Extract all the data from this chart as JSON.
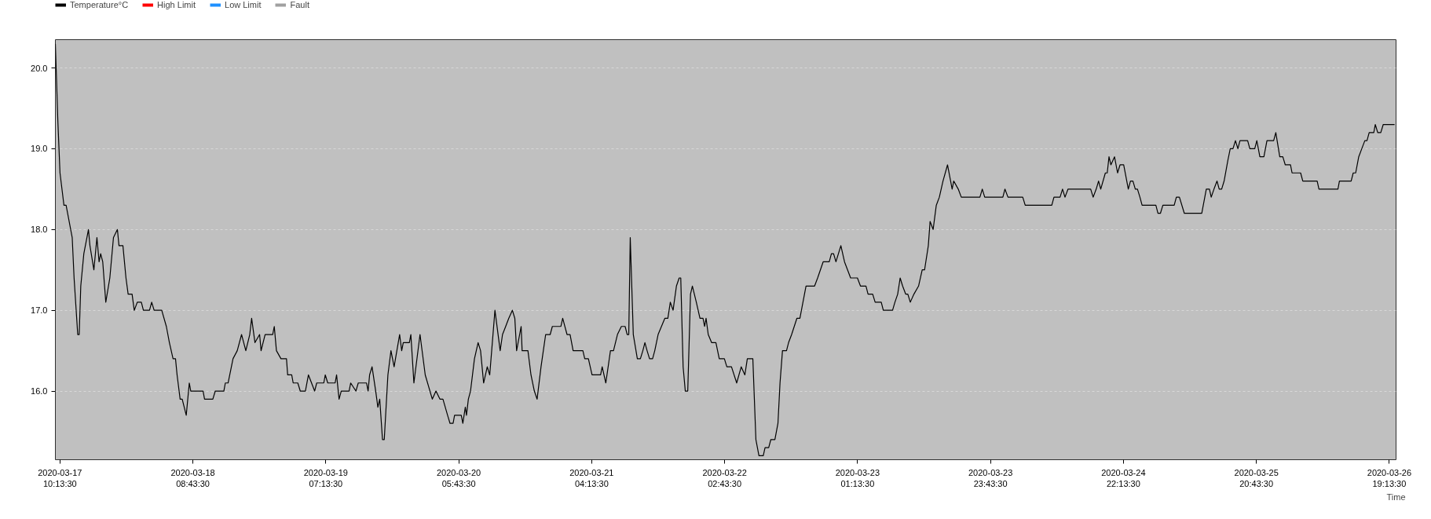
{
  "chart_data": {
    "type": "line",
    "xlabel": "Time",
    "legend": "top left",
    "grid": "y",
    "line_style": "solid",
    "xlim": [
      "2020-03-17T09:27",
      "2020-03-26T20:22"
    ],
    "xticks": [
      {
        "value": "2020-03-17T10:13:30",
        "label": "2020-03-17\n10:13:30"
      },
      {
        "value": "2020-03-18T08:43:30",
        "label": "2020-03-18\n08:43:30"
      },
      {
        "value": "2020-03-19T07:13:30",
        "label": "2020-03-19\n07:13:30"
      },
      {
        "value": "2020-03-20T05:43:30",
        "label": "2020-03-20\n05:43:30"
      },
      {
        "value": "2020-03-21T04:13:30",
        "label": "2020-03-21\n04:13:30"
      },
      {
        "value": "2020-03-22T02:43:30",
        "label": "2020-03-22\n02:43:30"
      },
      {
        "value": "2020-03-23T01:13:30",
        "label": "2020-03-23\n01:13:30"
      },
      {
        "value": "2020-03-23T23:43:30",
        "label": "2020-03-23\n23:43:30"
      },
      {
        "value": "2020-03-24T22:13:30",
        "label": "2020-03-24\n22:13:30"
      },
      {
        "value": "2020-03-25T20:43:30",
        "label": "2020-03-25\n20:43:30"
      },
      {
        "value": "2020-03-26T19:13:30",
        "label": "2020-03-26\n19:13:30"
      }
    ],
    "ylim": [
      15.15,
      20.35
    ],
    "yticks": [
      {
        "value": 16,
        "label": "16.0"
      },
      {
        "value": 17,
        "label": "17.0"
      },
      {
        "value": 18,
        "label": "18.0"
      },
      {
        "value": 19,
        "label": "19.0"
      },
      {
        "value": 20,
        "label": "20.0"
      }
    ],
    "series": [
      {
        "name": "Temperature°C",
        "color": "#000000",
        "x": [
          "2020-03-17T09:27",
          "2020-03-17T09:52",
          "2020-03-17T10:14",
          "2020-03-17T10:54",
          "2020-03-17T11:16",
          "2020-03-17T12:18",
          "2020-03-17T12:37",
          "2020-03-17T13:14",
          "2020-03-17T13:29",
          "2020-03-17T13:45",
          "2020-03-17T14:16",
          "2020-03-17T15:03",
          "2020-03-17T15:18",
          "2020-03-17T15:58",
          "2020-03-17T16:29",
          "2020-03-17T16:51",
          "2020-03-17T17:07",
          "2020-03-17T17:28",
          "2020-03-17T17:59",
          "2020-03-17T18:40",
          "2020-03-17T19:17",
          "2020-03-17T19:57",
          "2020-03-17T20:13",
          "2020-03-17T20:53",
          "2020-03-17T21:24",
          "2020-03-17T21:46",
          "2020-03-17T22:26",
          "2020-03-17T22:48",
          "2020-03-17T23:19",
          "2020-03-18T00:00",
          "2020-03-18T00:21",
          "2020-03-18T01:23",
          "2020-03-18T01:45",
          "2020-03-18T02:10",
          "2020-03-18T03:27",
          "2020-03-18T04:14",
          "2020-03-18T04:45",
          "2020-03-18T05:22",
          "2020-03-18T05:47",
          "2020-03-18T06:03",
          "2020-03-18T06:34",
          "2020-03-18T06:55",
          "2020-03-18T07:36",
          "2020-03-18T08:07",
          "2020-03-18T08:22",
          "2020-03-18T10:27",
          "2020-03-18T10:42",
          "2020-03-18T12:06",
          "2020-03-18T12:31",
          "2020-03-18T13:58",
          "2020-03-18T14:13",
          "2020-03-18T14:41",
          "2020-03-18T15:31",
          "2020-03-18T16:14",
          "2020-03-18T16:58",
          "2020-03-18T17:41",
          "2020-03-18T18:21",
          "2020-03-18T18:40",
          "2020-03-18T19:14",
          "2020-03-18T20:01",
          "2020-03-18T20:16",
          "2020-03-18T20:57",
          "2020-03-18T22:14",
          "2020-03-18T22:30",
          "2020-03-18T22:52",
          "2020-03-18T23:38",
          "2020-03-19T00:34",
          "2020-03-19T00:46",
          "2020-03-19T01:27",
          "2020-03-19T01:42",
          "2020-03-19T02:29",
          "2020-03-19T02:54",
          "2020-03-19T03:46",
          "2020-03-19T04:17",
          "2020-03-19T05:20",
          "2020-03-19T05:41",
          "2020-03-19T06:53",
          "2020-03-19T07:08",
          "2020-03-19T07:33",
          "2020-03-19T08:48",
          "2020-03-19T09:03",
          "2020-03-19T09:28",
          "2020-03-19T09:50",
          "2020-03-19T11:10",
          "2020-03-19T11:26",
          "2020-03-19T12:19",
          "2020-03-19T12:43",
          "2020-03-19T14:07",
          "2020-03-19T14:23",
          "2020-03-19T14:38",
          "2020-03-19T15:03",
          "2020-03-19T15:40",
          "2020-03-19T16:02",
          "2020-03-19T16:21",
          "2020-03-19T16:49",
          "2020-03-19T17:07",
          "2020-03-19T17:44",
          "2020-03-19T18:15",
          "2020-03-19T18:47",
          "2020-03-19T19:43",
          "2020-03-19T20:04",
          "2020-03-19T20:20",
          "2020-03-19T21:22",
          "2020-03-19T21:37",
          "2020-03-19T22:08",
          "2020-03-19T23:10",
          "2020-03-20T00:03",
          "2020-03-20T01:15",
          "2020-03-20T01:52",
          "2020-03-20T02:32",
          "2020-03-20T03:03",
          "2020-03-20T03:50",
          "2020-03-20T04:15",
          "2020-03-20T04:46",
          "2020-03-20T05:01",
          "2020-03-20T06:09",
          "2020-03-20T06:25",
          "2020-03-20T06:50",
          "2020-03-20T07:02",
          "2020-03-20T07:21",
          "2020-03-20T07:43",
          "2020-03-20T08:23",
          "2020-03-20T09:00",
          "2020-03-20T09:25",
          "2020-03-20T09:56",
          "2020-03-20T10:33",
          "2020-03-20T10:58",
          "2020-03-20T11:51",
          "2020-03-20T12:44",
          "2020-03-20T13:08",
          "2020-03-20T13:40",
          "2020-03-20T14:11",
          "2020-03-20T14:48",
          "2020-03-20T15:13",
          "2020-03-20T15:31",
          "2020-03-20T16:17",
          "2020-03-20T16:27",
          "2020-03-20T17:26",
          "2020-03-20T17:57",
          "2020-03-20T18:31",
          "2020-03-20T18:59",
          "2020-03-20T19:39",
          "2020-03-20T20:26",
          "2020-03-20T21:12",
          "2020-03-20T21:34",
          "2020-03-20T23:01",
          "2020-03-20T23:19",
          "2020-03-21T00:03",
          "2020-03-21T00:34",
          "2020-03-21T01:05",
          "2020-03-21T02:44",
          "2020-03-21T03:03",
          "2020-03-21T03:40",
          "2020-03-21T04:17",
          "2020-03-21T05:44",
          "2020-03-21T06:00",
          "2020-03-21T06:37",
          "2020-03-21T07:24",
          "2020-03-21T07:55",
          "2020-03-21T08:35",
          "2020-03-21T09:15",
          "2020-03-21T09:53",
          "2020-03-21T10:14",
          "2020-03-21T10:30",
          "2020-03-21T10:45",
          "2020-03-21T11:16",
          "2020-03-21T11:57",
          "2020-03-21T12:28",
          "2020-03-21T12:53",
          "2020-03-21T13:14",
          "2020-03-21T13:36",
          "2020-03-21T14:01",
          "2020-03-21T14:32",
          "2020-03-21T14:54",
          "2020-03-21T15:28",
          "2020-03-21T16:36",
          "2020-03-21T17:07",
          "2020-03-21T17:32",
          "2020-03-21T18:00",
          "2020-03-21T18:34",
          "2020-03-21T19:02",
          "2020-03-21T19:18",
          "2020-03-21T19:42",
          "2020-03-21T20:04",
          "2020-03-21T20:29",
          "2020-03-21T20:57",
          "2020-03-21T21:16",
          "2020-03-21T21:56",
          "2020-03-21T22:33",
          "2020-03-21T23:04",
          "2020-03-21T23:20",
          "2020-03-21T23:35",
          "2020-03-21T23:57",
          "2020-03-22T00:31",
          "2020-03-22T01:15",
          "2020-03-22T01:49",
          "2020-03-22T02:41",
          "2020-03-22T03:06",
          "2020-03-22T03:53",
          "2020-03-22T04:46",
          "2020-03-22T05:32",
          "2020-03-22T06:09",
          "2020-03-22T06:34",
          "2020-03-22T07:30",
          "2020-03-22T08:01",
          "2020-03-22T08:32",
          "2020-03-22T09:16",
          "2020-03-22T09:34",
          "2020-03-22T10:11",
          "2020-03-22T10:33",
          "2020-03-22T11:14",
          "2020-03-22T11:45",
          "2020-03-22T12:06",
          "2020-03-22T12:31",
          "2020-03-22T13:12",
          "2020-03-22T13:33",
          "2020-03-22T14:04",
          "2020-03-22T14:57",
          "2020-03-22T15:28",
          "2020-03-22T16:30",
          "2020-03-22T17:57",
          "2020-03-22T18:28",
          "2020-03-22T19:24",
          "2020-03-22T20:26",
          "2020-03-22T20:48",
          "2020-03-22T21:10",
          "2020-03-22T21:34",
          "2020-03-22T21:59",
          "2020-03-22T22:24",
          "2020-03-22T23:01",
          "2020-03-22T23:32",
          "2020-03-23T00:03",
          "2020-03-23T01:12",
          "2020-03-23T01:43",
          "2020-03-23T02:39",
          "2020-03-23T03:00",
          "2020-03-23T03:47",
          "2020-03-23T04:12",
          "2020-03-23T05:14",
          "2020-03-23T05:35",
          "2020-03-23T07:09",
          "2020-03-23T07:33",
          "2020-03-23T08:01",
          "2020-03-23T08:26",
          "2020-03-23T08:51",
          "2020-03-23T09:22",
          "2020-03-23T09:44",
          "2020-03-23T10:09",
          "2020-03-23T10:46",
          "2020-03-23T11:33",
          "2020-03-23T12:10",
          "2020-03-23T12:34",
          "2020-03-23T13:12",
          "2020-03-23T13:30",
          "2020-03-23T14:01",
          "2020-03-23T14:33",
          "2020-03-23T15:04",
          "2020-03-23T15:41",
          "2020-03-23T16:27",
          "2020-03-23T17:14",
          "2020-03-23T17:30",
          "2020-03-23T18:16",
          "2020-03-23T18:47",
          "2020-03-23T21:56",
          "2020-03-23T22:20",
          "2020-03-23T22:45",
          "2020-03-24T01:49",
          "2020-03-24T02:10",
          "2020-03-24T02:41",
          "2020-03-24T05:11",
          "2020-03-24T05:36",
          "2020-03-24T10:06",
          "2020-03-24T10:28",
          "2020-03-24T11:30",
          "2020-03-24T11:55",
          "2020-03-24T12:20",
          "2020-03-24T12:51",
          "2020-03-24T16:41",
          "2020-03-24T17:06",
          "2020-03-24T17:37",
          "2020-03-24T18:01",
          "2020-03-24T18:23",
          "2020-03-24T19:10",
          "2020-03-24T19:29",
          "2020-03-24T19:47",
          "2020-03-24T20:06",
          "2020-03-24T20:43",
          "2020-03-24T21:14",
          "2020-03-24T21:39",
          "2020-03-24T22:16",
          "2020-03-24T23:03",
          "2020-03-24T23:25",
          "2020-03-24T23:50",
          "2020-03-25T00:14",
          "2020-03-25T00:36",
          "2020-03-25T01:01",
          "2020-03-25T01:23",
          "2020-03-25T03:43",
          "2020-03-25T04:04",
          "2020-03-25T04:29",
          "2020-03-25T04:54",
          "2020-03-25T06:49",
          "2020-03-25T07:11",
          "2020-03-25T07:42",
          "2020-03-25T08:32",
          "2020-03-25T11:29",
          "2020-03-25T12:15",
          "2020-03-25T12:47",
          "2020-03-25T13:05",
          "2020-03-25T13:33",
          "2020-03-25T14:04",
          "2020-03-25T14:26",
          "2020-03-25T14:51",
          "2020-03-25T15:16",
          "2020-03-25T15:53",
          "2020-03-25T16:18",
          "2020-03-25T16:46",
          "2020-03-25T17:11",
          "2020-03-25T17:36",
          "2020-03-25T17:57",
          "2020-03-25T19:15",
          "2020-03-25T19:37",
          "2020-03-25T20:27",
          "2020-03-25T20:48",
          "2020-03-25T21:19",
          "2020-03-25T22:00",
          "2020-03-25T22:31",
          "2020-03-25T23:39",
          "2020-03-26T00:01",
          "2020-03-26T00:41",
          "2020-03-26T01:12",
          "2020-03-26T01:37",
          "2020-03-26T02:30",
          "2020-03-26T02:46",
          "2020-03-26T04:13",
          "2020-03-26T04:35",
          "2020-03-26T07:01",
          "2020-03-26T07:19",
          "2020-03-26T10:32",
          "2020-03-26T10:47",
          "2020-03-26T12:46",
          "2020-03-26T13:07",
          "2020-03-26T13:32",
          "2020-03-26T14:03",
          "2020-03-26T14:34",
          "2020-03-26T15:05",
          "2020-03-26T15:27",
          "2020-03-26T15:49",
          "2020-03-26T16:36",
          "2020-03-26T16:51",
          "2020-03-26T17:16",
          "2020-03-26T17:47",
          "2020-03-26T18:12",
          "2020-03-26T20:07"
        ],
        "values": [
          20.3,
          19.35,
          18.7,
          18.3,
          18.3,
          17.9,
          17.4,
          16.7,
          16.7,
          17.3,
          17.7,
          18.0,
          17.8,
          17.5,
          17.9,
          17.6,
          17.7,
          17.6,
          17.1,
          17.4,
          17.9,
          18.0,
          17.8,
          17.8,
          17.4,
          17.2,
          17.2,
          17.0,
          17.1,
          17.1,
          17.0,
          17.0,
          17.1,
          17.0,
          17.0,
          16.8,
          16.6,
          16.4,
          16.4,
          16.2,
          15.9,
          15.9,
          15.7,
          16.1,
          16.0,
          16.0,
          15.9,
          15.9,
          16.0,
          16.0,
          16.1,
          16.1,
          16.4,
          16.5,
          16.7,
          16.5,
          16.7,
          16.9,
          16.6,
          16.7,
          16.5,
          16.7,
          16.7,
          16.8,
          16.5,
          16.4,
          16.4,
          16.2,
          16.2,
          16.1,
          16.1,
          16.0,
          16.0,
          16.2,
          16.0,
          16.1,
          16.1,
          16.2,
          16.1,
          16.1,
          16.2,
          15.9,
          16.0,
          16.0,
          16.1,
          16.0,
          16.1,
          16.1,
          16.0,
          16.2,
          16.3,
          16.0,
          15.8,
          15.9,
          15.4,
          15.4,
          16.2,
          16.5,
          16.3,
          16.7,
          16.5,
          16.6,
          16.6,
          16.7,
          16.1,
          16.7,
          16.2,
          15.9,
          16.0,
          15.9,
          15.9,
          15.7,
          15.6,
          15.6,
          15.7,
          15.7,
          15.6,
          15.8,
          15.7,
          15.9,
          16.0,
          16.4,
          16.6,
          16.5,
          16.1,
          16.3,
          16.2,
          17.0,
          16.5,
          16.7,
          16.8,
          16.9,
          17.0,
          16.9,
          16.5,
          16.8,
          16.5,
          16.5,
          16.2,
          16.0,
          15.9,
          16.3,
          16.7,
          16.7,
          16.8,
          16.8,
          16.9,
          16.7,
          16.7,
          16.5,
          16.5,
          16.4,
          16.4,
          16.2,
          16.2,
          16.3,
          16.1,
          16.5,
          16.5,
          16.7,
          16.8,
          16.8,
          16.7,
          16.7,
          17.9,
          16.7,
          16.4,
          16.4,
          16.5,
          16.6,
          16.5,
          16.4,
          16.4,
          16.5,
          16.7,
          16.9,
          16.9,
          17.1,
          17.0,
          17.3,
          17.4,
          17.4,
          16.3,
          16.0,
          16.0,
          17.2,
          17.3,
          17.1,
          16.9,
          16.9,
          16.8,
          16.9,
          16.7,
          16.6,
          16.6,
          16.4,
          16.4,
          16.3,
          16.3,
          16.1,
          16.3,
          16.2,
          16.4,
          16.4,
          15.4,
          15.2,
          15.2,
          15.3,
          15.3,
          15.4,
          15.4,
          15.6,
          16.1,
          16.5,
          16.5,
          16.6,
          16.7,
          16.9,
          16.9,
          17.3,
          17.3,
          17.4,
          17.6,
          17.6,
          17.7,
          17.7,
          17.6,
          17.7,
          17.8,
          17.6,
          17.5,
          17.4,
          17.4,
          17.3,
          17.3,
          17.2,
          17.2,
          17.1,
          17.1,
          17.0,
          17.0,
          17.1,
          17.2,
          17.4,
          17.3,
          17.2,
          17.2,
          17.1,
          17.2,
          17.3,
          17.5,
          17.5,
          17.8,
          18.1,
          18.0,
          18.3,
          18.4,
          18.6,
          18.8,
          18.5,
          18.6,
          18.5,
          18.4,
          18.4,
          18.5,
          18.4,
          18.4,
          18.5,
          18.4,
          18.4,
          18.3,
          18.3,
          18.4,
          18.4,
          18.5,
          18.4,
          18.5,
          18.5,
          18.4,
          18.5,
          18.6,
          18.5,
          18.7,
          18.7,
          18.9,
          18.8,
          18.9,
          18.7,
          18.8,
          18.8,
          18.5,
          18.6,
          18.6,
          18.5,
          18.5,
          18.4,
          18.3,
          18.3,
          18.2,
          18.2,
          18.3,
          18.3,
          18.4,
          18.4,
          18.2,
          18.2,
          18.5,
          18.5,
          18.4,
          18.5,
          18.6,
          18.5,
          18.5,
          18.6,
          18.85,
          19.0,
          19.0,
          19.1,
          19.0,
          19.1,
          19.1,
          19.0,
          19.0,
          19.1,
          18.9,
          18.9,
          19.1,
          19.1,
          19.2,
          18.9,
          18.9,
          18.8,
          18.8,
          18.7,
          18.7,
          18.6,
          18.6,
          18.5,
          18.5,
          18.6,
          18.6,
          18.7,
          18.7,
          18.9,
          19.0,
          19.1,
          19.1,
          19.2,
          19.2,
          19.3,
          19.2,
          19.2,
          19.3,
          19.3
        ]
      },
      {
        "name": "High Limit",
        "color": "#ff0000"
      },
      {
        "name": "Low Limit",
        "color": "#1e90ff"
      },
      {
        "name": "Fault",
        "color": "#a0a0a0"
      }
    ]
  }
}
